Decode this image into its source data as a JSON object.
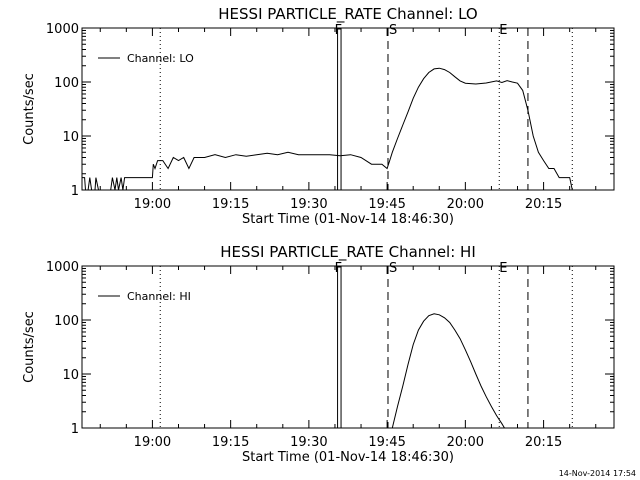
{
  "chart_data": [
    {
      "type": "line",
      "title": "HESSI PARTICLE_RATE Channel: LO",
      "xlabel": "Start Time (01-Nov-14 18:46:30)",
      "ylabel": "Counts/sec",
      "yscale": "log",
      "ylim": [
        1,
        1000
      ],
      "xlim": [
        "18:46:30",
        "20:28:30"
      ],
      "x_ticks": [
        "19:00",
        "19:15",
        "19:30",
        "19:45",
        "20:00",
        "20:15"
      ],
      "y_ticks": [
        "1",
        "10",
        "100",
        "1000"
      ],
      "legend_position": "top-left",
      "series": [
        {
          "name": "Channel: LO",
          "points": [
            [
              "18:46:30",
              1.7
            ],
            [
              "18:47:00",
              1.7
            ],
            [
              "18:47:10",
              1.0
            ],
            [
              "18:47:40",
              1.0
            ],
            [
              "18:48:00",
              1.7
            ],
            [
              "18:48:20",
              1.0
            ],
            [
              "18:49:00",
              1.0
            ],
            [
              "18:49:10",
              1.7
            ],
            [
              "18:49:40",
              1.0
            ],
            [
              "18:52:00",
              1.0
            ],
            [
              "18:52:20",
              1.7
            ],
            [
              "18:52:50",
              1.0
            ],
            [
              "18:53:10",
              1.7
            ],
            [
              "18:53:30",
              1.0
            ],
            [
              "18:54:00",
              1.7
            ],
            [
              "18:54:20",
              1.0
            ],
            [
              "18:54:40",
              1.7
            ],
            [
              "19:00:00",
              1.7
            ],
            [
              "19:00:10",
              3.0
            ],
            [
              "19:00:30",
              2.5
            ],
            [
              "19:01:00",
              3.5
            ],
            [
              "19:02:00",
              3.5
            ],
            [
              "19:03:00",
              2.5
            ],
            [
              "19:04:00",
              4.0
            ],
            [
              "19:05:00",
              3.5
            ],
            [
              "19:06:00",
              4.0
            ],
            [
              "19:07:00",
              2.5
            ],
            [
              "19:08:00",
              4.0
            ],
            [
              "19:10:00",
              4.0
            ],
            [
              "19:12:00",
              4.5
            ],
            [
              "19:14:00",
              4.0
            ],
            [
              "19:16:00",
              4.5
            ],
            [
              "19:18:00",
              4.2
            ],
            [
              "19:20:00",
              4.5
            ],
            [
              "19:22:00",
              4.8
            ],
            [
              "19:24:00",
              4.5
            ],
            [
              "19:26:00",
              5.0
            ],
            [
              "19:28:00",
              4.5
            ],
            [
              "19:30:00",
              4.5
            ],
            [
              "19:32:00",
              4.5
            ],
            [
              "19:34:00",
              4.5
            ],
            [
              "19:36:00",
              4.3
            ],
            [
              "19:38:00",
              4.5
            ],
            [
              "19:40:00",
              4.0
            ],
            [
              "19:42:00",
              3.0
            ],
            [
              "19:44:00",
              3.0
            ],
            [
              "19:45:00",
              2.5
            ],
            [
              "19:45:30",
              3.5
            ],
            [
              "19:46:00",
              5.0
            ],
            [
              "19:47:00",
              9.0
            ],
            [
              "19:48:00",
              16.0
            ],
            [
              "19:49:00",
              28.0
            ],
            [
              "19:50:00",
              50.0
            ],
            [
              "19:51:00",
              80.0
            ],
            [
              "19:52:00",
              115.0
            ],
            [
              "19:53:00",
              150.0
            ],
            [
              "19:54:00",
              175.0
            ],
            [
              "19:55:00",
              180.0
            ],
            [
              "19:56:00",
              170.0
            ],
            [
              "19:57:00",
              150.0
            ],
            [
              "19:58:00",
              125.0
            ],
            [
              "19:59:00",
              105.0
            ],
            [
              "20:00:00",
              95.0
            ],
            [
              "20:02:00",
              92.0
            ],
            [
              "20:04:00",
              96.0
            ],
            [
              "20:06:00",
              105.0
            ],
            [
              "20:07:00",
              98.0
            ],
            [
              "20:08:00",
              106.0
            ],
            [
              "20:09:00",
              100.0
            ],
            [
              "20:10:00",
              95.0
            ],
            [
              "20:11:00",
              70.0
            ],
            [
              "20:12:00",
              30.0
            ],
            [
              "20:13:00",
              10.0
            ],
            [
              "20:14:00",
              5.0
            ],
            [
              "20:15:00",
              3.5
            ],
            [
              "20:16:00",
              2.5
            ],
            [
              "20:17:00",
              2.5
            ],
            [
              "20:18:00",
              1.7
            ],
            [
              "20:20:00",
              1.7
            ],
            [
              "20:20:30",
              1.0
            ],
            [
              "20:21:00",
              1.0
            ]
          ]
        }
      ],
      "annotations": {
        "solid_lines": [
          "19:35:30",
          "19:36:10"
        ],
        "solid_label": "F",
        "dashed_lines": [
          "19:45:10",
          "20:12:00"
        ],
        "dashed_label": "S",
        "dotted_lines": [
          "19:01:30",
          "20:06:30",
          "20:20:30"
        ],
        "dotted_label": "E"
      }
    },
    {
      "type": "line",
      "title": "HESSI PARTICLE_RATE Channel: HI",
      "xlabel": "Start Time (01-Nov-14 18:46:30)",
      "ylabel": "Counts/sec",
      "yscale": "log",
      "ylim": [
        1,
        1000
      ],
      "xlim": [
        "18:46:30",
        "20:28:30"
      ],
      "x_ticks": [
        "19:00",
        "19:15",
        "19:30",
        "19:45",
        "20:00",
        "20:15"
      ],
      "y_ticks": [
        "1",
        "10",
        "100",
        "1000"
      ],
      "legend_position": "top-left",
      "series": [
        {
          "name": "Channel: HI",
          "points": [
            [
              "19:46:00",
              1.0
            ],
            [
              "19:47:00",
              2.5
            ],
            [
              "19:48:00",
              6.0
            ],
            [
              "19:49:00",
              15.0
            ],
            [
              "19:50:00",
              35.0
            ],
            [
              "19:51:00",
              65.0
            ],
            [
              "19:52:00",
              95.0
            ],
            [
              "19:53:00",
              120.0
            ],
            [
              "19:54:00",
              130.0
            ],
            [
              "19:55:00",
              125.0
            ],
            [
              "19:56:00",
              110.0
            ],
            [
              "19:57:00",
              90.0
            ],
            [
              "19:58:00",
              65.0
            ],
            [
              "19:59:00",
              45.0
            ],
            [
              "20:00:00",
              28.0
            ],
            [
              "20:01:00",
              17.0
            ],
            [
              "20:02:00",
              10.0
            ],
            [
              "20:03:00",
              6.0
            ],
            [
              "20:04:00",
              3.8
            ],
            [
              "20:05:00",
              2.5
            ],
            [
              "20:06:00",
              1.7
            ],
            [
              "20:07:00",
              1.2
            ],
            [
              "20:07:30",
              1.0
            ]
          ]
        }
      ],
      "annotations": {
        "solid_lines": [
          "19:35:30",
          "19:36:10"
        ],
        "solid_label": "F",
        "dashed_lines": [
          "19:45:10",
          "20:12:00"
        ],
        "dashed_label": "S",
        "dotted_lines": [
          "19:01:30",
          "20:06:30",
          "20:20:30"
        ],
        "dotted_label": "E"
      }
    }
  ],
  "footer": {
    "timestamp": "14-Nov-2014 17:54"
  }
}
